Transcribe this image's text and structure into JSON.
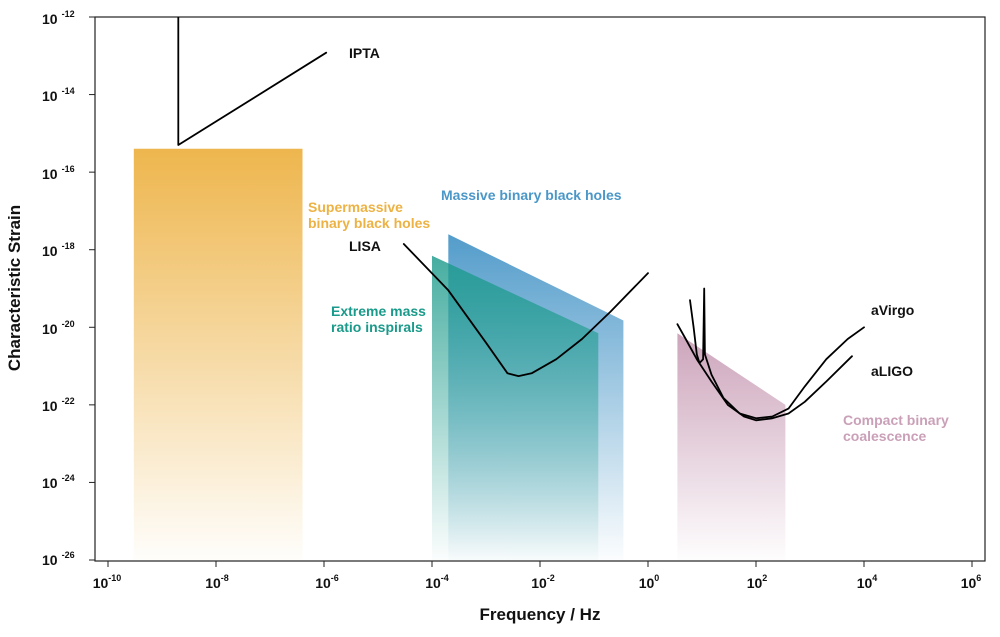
{
  "chart_data": {
    "type": "area",
    "xlabel": "Frequency / Hz",
    "ylabel": "Characteristic Strain",
    "x_scale": "log",
    "y_scale": "log",
    "xlim": [
      1e-10,
      1000000.0
    ],
    "ylim": [
      1e-26,
      1e-12
    ],
    "grid": false,
    "x_ticks": [
      {
        "base": "10",
        "exp": "-10",
        "value": 1e-10
      },
      {
        "base": "10",
        "exp": "-8",
        "value": 1e-08
      },
      {
        "base": "10",
        "exp": "-6",
        "value": 1e-06
      },
      {
        "base": "10",
        "exp": "-4",
        "value": 0.0001
      },
      {
        "base": "10",
        "exp": "-2",
        "value": 0.01
      },
      {
        "base": "10",
        "exp": "0",
        "value": 1
      },
      {
        "base": "10",
        "exp": "2",
        "value": 100
      },
      {
        "base": "10",
        "exp": "4",
        "value": 10000
      },
      {
        "base": "10",
        "exp": "6",
        "value": 1000000
      }
    ],
    "y_ticks": [
      {
        "base": "10",
        "exp": "-12",
        "value": 1e-12
      },
      {
        "base": "10",
        "exp": "-14",
        "value": 1e-14
      },
      {
        "base": "10",
        "exp": "-16",
        "value": 1e-16
      },
      {
        "base": "10",
        "exp": "-18",
        "value": 1e-18
      },
      {
        "base": "10",
        "exp": "-20",
        "value": 1e-20
      },
      {
        "base": "10",
        "exp": "-22",
        "value": 1e-22
      },
      {
        "base": "10",
        "exp": "-24",
        "value": 1e-24
      },
      {
        "base": "10",
        "exp": "-26",
        "value": 1e-26
      }
    ],
    "regions": [
      {
        "label_lines": [
          "Supermassive",
          "binary black holes"
        ],
        "color": "#edb244",
        "points": [
          [
            3e-10,
            4e-16
          ],
          [
            4e-07,
            4e-16
          ],
          [
            4e-07,
            1e-26
          ],
          [
            3e-10,
            1e-26
          ]
        ]
      },
      {
        "label_lines": [
          "Massive binary black holes"
        ],
        "color": "#4a97c8",
        "points": [
          [
            0.0002,
            2.5e-18
          ],
          [
            0.35,
            1.5e-20
          ],
          [
            0.35,
            1e-26
          ],
          [
            0.0002,
            1e-26
          ]
        ]
      },
      {
        "label_lines": [
          "Extreme mass",
          "ratio inspirals"
        ],
        "color": "#1a9a8a",
        "points": [
          [
            0.0001,
            7e-19
          ],
          [
            0.12,
            7e-21
          ],
          [
            0.12,
            1e-26
          ],
          [
            0.0001,
            1e-26
          ]
        ]
      },
      {
        "label_lines": [
          "Compact binary",
          "coalescence"
        ],
        "color": "#caa0b8",
        "points": [
          [
            3.5,
            7e-21
          ],
          [
            350,
            1e-22
          ],
          [
            350,
            1e-26
          ],
          [
            3.5,
            1e-26
          ]
        ]
      }
    ],
    "curves": [
      {
        "name": "IPTA",
        "color": "#000000",
        "points": [
          [
            2e-09,
            1e-12
          ],
          [
            2e-09,
            5e-16
          ],
          [
            1.1e-06,
            1.2e-13
          ]
        ]
      },
      {
        "name": "LISA",
        "color": "#000000",
        "points": [
          [
            3e-05,
            1.4e-18
          ],
          [
            0.0002,
            9e-20
          ],
          [
            0.001,
            4e-21
          ],
          [
            0.0025,
            6.5e-22
          ],
          [
            0.004,
            5.5e-22
          ],
          [
            0.007,
            6.5e-22
          ],
          [
            0.02,
            1.5e-21
          ],
          [
            0.06,
            5e-21
          ],
          [
            0.2,
            2.5e-20
          ],
          [
            1,
            2.5e-19
          ]
        ]
      },
      {
        "name": "aVirgo",
        "color": "#000000",
        "points": [
          [
            6,
            5e-20
          ],
          [
            7,
            1e-20
          ],
          [
            8,
            2e-21
          ],
          [
            9,
            1.2e-21
          ],
          [
            10.5,
            1.5e-21
          ],
          [
            11,
            1e-19
          ],
          [
            11.3,
            2e-21
          ],
          [
            15,
            6e-22
          ],
          [
            25,
            1.5e-22
          ],
          [
            50,
            6e-23
          ],
          [
            100,
            4.5e-23
          ],
          [
            200,
            5e-23
          ],
          [
            400,
            8e-23
          ],
          [
            800,
            3e-22
          ],
          [
            2000,
            1.5e-21
          ],
          [
            5000,
            5e-21
          ],
          [
            10000.0,
            1e-20
          ]
        ]
      },
      {
        "name": "aLIGO",
        "color": "#000000",
        "points": [
          [
            3.5,
            1.2e-20
          ],
          [
            5,
            5e-21
          ],
          [
            8,
            1.5e-21
          ],
          [
            15,
            4e-22
          ],
          [
            30,
            1e-22
          ],
          [
            60,
            5e-23
          ],
          [
            100,
            4e-23
          ],
          [
            200,
            4.5e-23
          ],
          [
            400,
            6e-23
          ],
          [
            800,
            1.2e-22
          ],
          [
            2000,
            4e-22
          ],
          [
            6000,
            1.8e-21
          ]
        ]
      }
    ]
  }
}
